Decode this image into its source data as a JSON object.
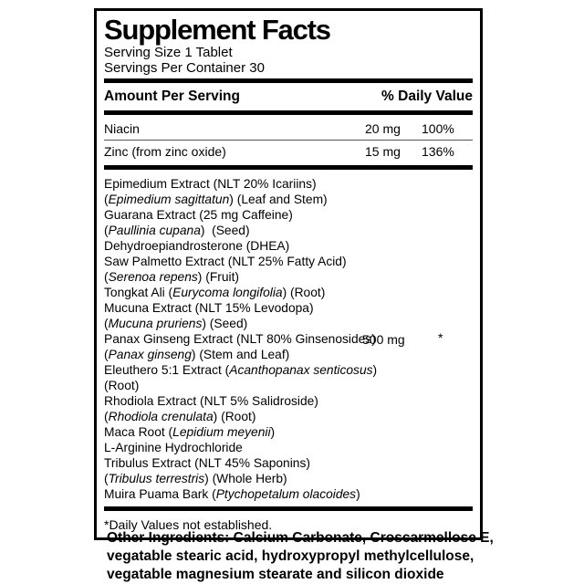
{
  "colors": {
    "text": "#000000",
    "background": "#ffffff"
  },
  "label": {
    "title": "Supplement Facts",
    "serving_size": "Serving Size 1 Tablet",
    "servings_per_container": "Servings Per Container 30",
    "columns": {
      "amount": "Amount Per Serving",
      "daily_value": "% Daily Value"
    },
    "nutrients": [
      {
        "name": "Niacin",
        "amount": "20 mg",
        "dv": "100%"
      },
      {
        "name": "Zinc (from zinc oxide)",
        "amount": "15 mg",
        "dv": "136%"
      }
    ],
    "blend": {
      "amount": "500 mg",
      "dv": "*",
      "lines": [
        {
          "segments": [
            [
              "Epimedium Extract (NLT 20% Icariins)",
              false
            ]
          ]
        },
        {
          "segments": [
            [
              "(",
              false
            ],
            [
              "Epimedium sagittatun",
              true
            ],
            [
              ") (Leaf and Stem)",
              false
            ]
          ]
        },
        {
          "segments": [
            [
              "Guarana Extract (25 mg Caffeine)",
              false
            ]
          ]
        },
        {
          "segments": [
            [
              "(",
              false
            ],
            [
              "Paullinia cupana",
              true
            ],
            [
              ")  (Seed)",
              false
            ]
          ]
        },
        {
          "segments": [
            [
              "Dehydroepiandrosterone (DHEA)",
              false
            ]
          ]
        },
        {
          "segments": [
            [
              "Saw Palmetto Extract (NLT 25% Fatty Acid)",
              false
            ]
          ]
        },
        {
          "segments": [
            [
              "(",
              false
            ],
            [
              "Serenoa repens",
              true
            ],
            [
              ") (Fruit)",
              false
            ]
          ]
        },
        {
          "segments": [
            [
              "Tongkat Ali (",
              false
            ],
            [
              "Eurycoma longifolia",
              true
            ],
            [
              ") (Root)",
              false
            ]
          ]
        },
        {
          "segments": [
            [
              "Mucuna Extract (NLT 15% Levodopa)",
              false
            ]
          ]
        },
        {
          "segments": [
            [
              "(",
              false
            ],
            [
              "Mucuna pruriens",
              true
            ],
            [
              ") (Seed)",
              false
            ]
          ]
        },
        {
          "segments": [
            [
              "Panax Ginseng Extract (NLT 80% Ginsenosides)",
              false
            ]
          ]
        },
        {
          "segments": [
            [
              "(",
              false
            ],
            [
              "Panax ginseng",
              true
            ],
            [
              ") (Stem and Leaf)",
              false
            ]
          ]
        },
        {
          "segments": [
            [
              "Eleuthero 5:1 Extract (",
              false
            ],
            [
              "Acanthopanax senticosus",
              true
            ],
            [
              ")",
              false
            ]
          ]
        },
        {
          "segments": [
            [
              "(Root)",
              false
            ]
          ]
        },
        {
          "segments": [
            [
              "Rhodiola Extract (NLT 5% Salidroside)",
              false
            ]
          ]
        },
        {
          "segments": [
            [
              "(",
              false
            ],
            [
              "Rhodiola crenulata",
              true
            ],
            [
              ") (Root)",
              false
            ]
          ]
        },
        {
          "segments": [
            [
              "Maca Root (",
              false
            ],
            [
              "Lepidium meyenii",
              true
            ],
            [
              ")",
              false
            ]
          ]
        },
        {
          "segments": [
            [
              "L-Arginine Hydrochloride",
              false
            ]
          ]
        },
        {
          "segments": [
            [
              "Tribulus Extract (NLT 45% Saponins)",
              false
            ]
          ]
        },
        {
          "segments": [
            [
              "(",
              false
            ],
            [
              "Tribulus terrestris",
              true
            ],
            [
              ") (Whole Herb)",
              false
            ]
          ]
        },
        {
          "segments": [
            [
              "Muira Puama Bark (",
              false
            ],
            [
              "Ptychopetalum olacoides",
              true
            ],
            [
              ")",
              false
            ]
          ]
        }
      ]
    },
    "footnote": "*Daily Values not established."
  },
  "other_ingredients": "Other Ingredients: Calcium Carbonate, Croscarmellose E, vegatable stearic acid, hydroxypropyl methylcellulose, vegatable magnesium stearate and silicon dioxide"
}
